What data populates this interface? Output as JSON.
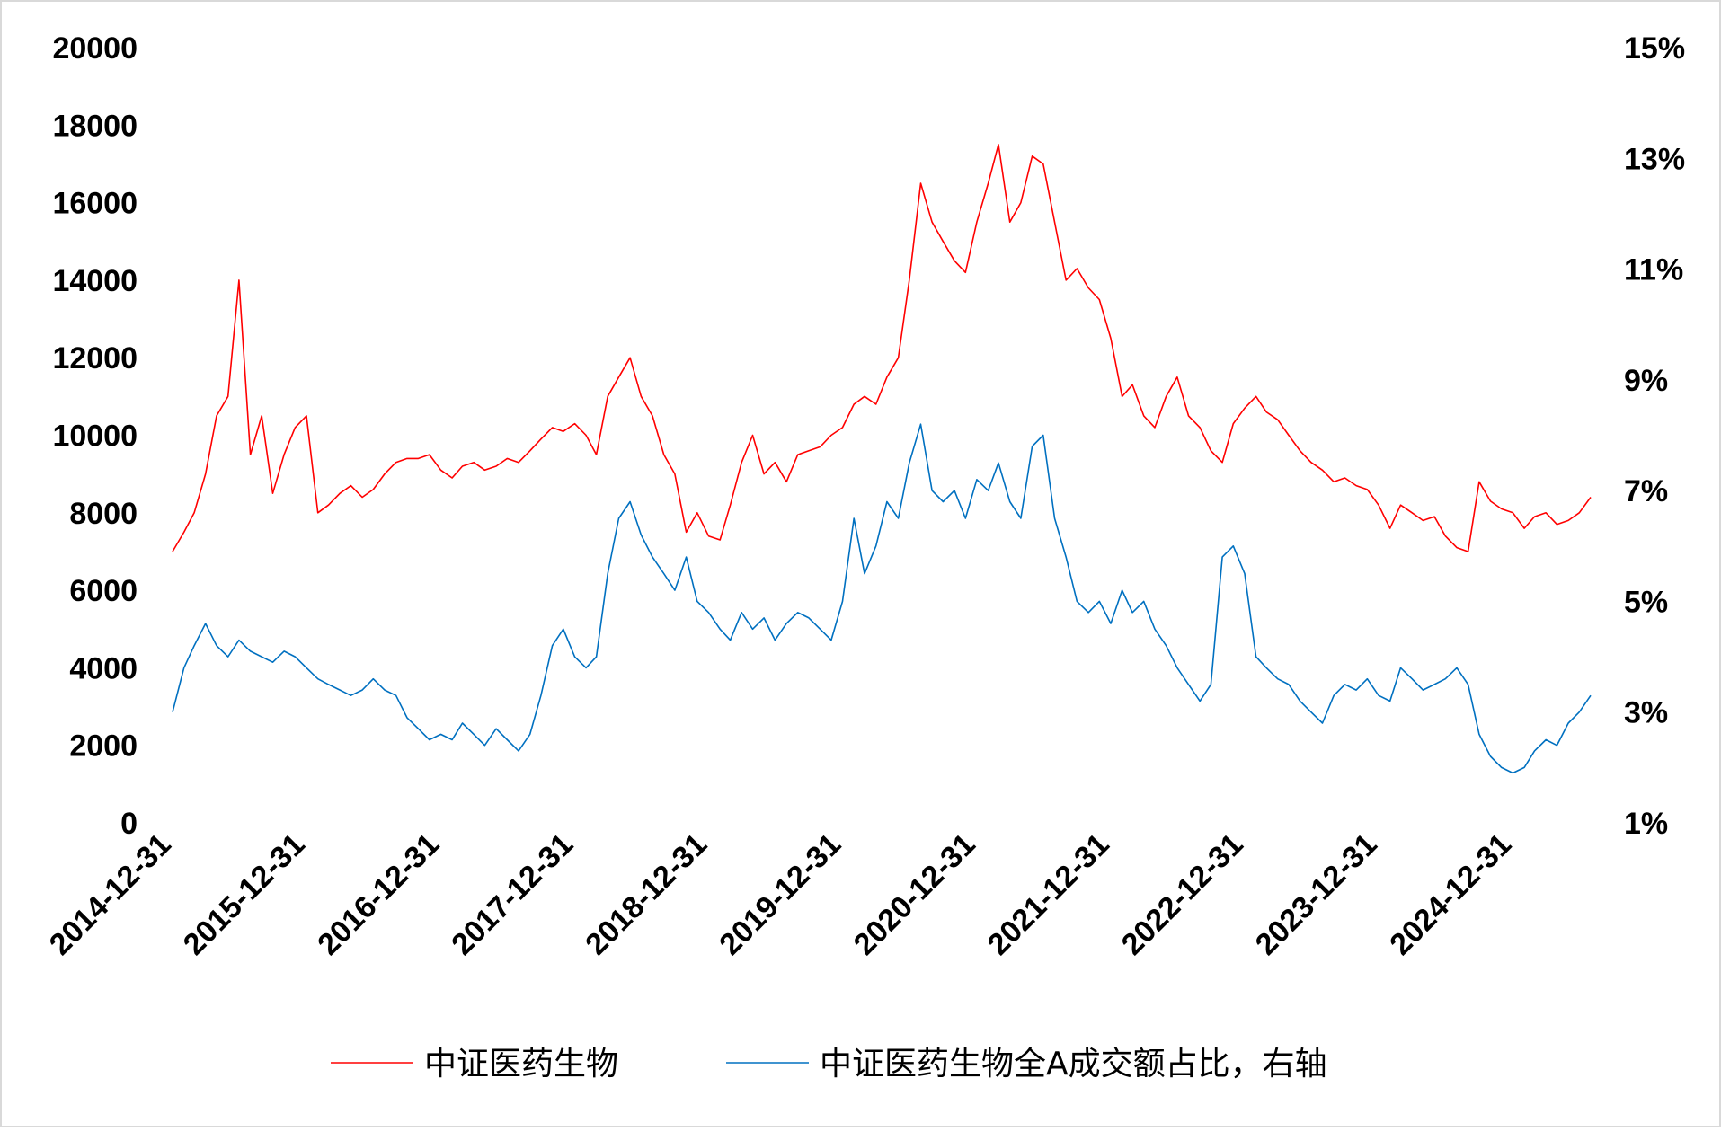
{
  "chart_data": {
    "type": "line",
    "x": [
      "2014-12-31",
      "2015-01-31",
      "2015-02-28",
      "2015-03-31",
      "2015-04-30",
      "2015-05-31",
      "2015-06-30",
      "2015-07-31",
      "2015-08-31",
      "2015-09-30",
      "2015-10-31",
      "2015-11-30",
      "2015-12-31",
      "2016-01-31",
      "2016-02-29",
      "2016-03-31",
      "2016-04-30",
      "2016-05-31",
      "2016-06-30",
      "2016-07-31",
      "2016-08-31",
      "2016-09-30",
      "2016-10-31",
      "2016-11-30",
      "2016-12-31",
      "2017-01-31",
      "2017-02-28",
      "2017-03-31",
      "2017-04-30",
      "2017-05-31",
      "2017-06-30",
      "2017-07-31",
      "2017-08-31",
      "2017-09-30",
      "2017-10-31",
      "2017-11-30",
      "2017-12-31",
      "2018-01-31",
      "2018-02-28",
      "2018-03-31",
      "2018-04-30",
      "2018-05-31",
      "2018-06-30",
      "2018-07-31",
      "2018-08-31",
      "2018-09-30",
      "2018-10-31",
      "2018-11-30",
      "2018-12-31",
      "2019-01-31",
      "2019-02-28",
      "2019-03-31",
      "2019-04-30",
      "2019-05-31",
      "2019-06-30",
      "2019-07-31",
      "2019-08-31",
      "2019-09-30",
      "2019-10-31",
      "2019-11-30",
      "2019-12-31",
      "2020-01-31",
      "2020-02-29",
      "2020-03-31",
      "2020-04-30",
      "2020-05-31",
      "2020-06-30",
      "2020-07-31",
      "2020-08-31",
      "2020-09-30",
      "2020-10-31",
      "2020-11-30",
      "2020-12-31",
      "2021-01-31",
      "2021-02-28",
      "2021-03-31",
      "2021-04-30",
      "2021-05-31",
      "2021-06-30",
      "2021-07-31",
      "2021-08-31",
      "2021-09-30",
      "2021-10-31",
      "2021-11-30",
      "2021-12-31",
      "2022-01-31",
      "2022-02-28",
      "2022-03-31",
      "2022-04-30",
      "2022-05-31",
      "2022-06-30",
      "2022-07-31",
      "2022-08-31",
      "2022-09-30",
      "2022-10-31",
      "2022-11-30",
      "2022-12-31",
      "2023-01-31",
      "2023-02-28",
      "2023-03-31",
      "2023-04-30",
      "2023-05-31",
      "2023-06-30",
      "2023-07-31",
      "2023-08-31",
      "2023-09-30",
      "2023-10-31",
      "2023-11-30",
      "2023-12-31",
      "2024-01-31",
      "2024-02-29",
      "2024-03-31",
      "2024-04-30",
      "2024-05-31",
      "2024-06-30",
      "2024-07-31",
      "2024-08-31",
      "2024-09-30",
      "2024-10-31",
      "2024-11-30",
      "2024-12-31",
      "2025-01-31",
      "2025-02-28",
      "2025-03-31",
      "2025-04-30",
      "2025-05-31",
      "2025-06-30",
      "2025-07-31"
    ],
    "series": [
      {
        "name": "中证医药生物",
        "color": "#ff0000",
        "axis": "y",
        "values": [
          7000,
          7500,
          8000,
          9000,
          10500,
          11000,
          14000,
          9500,
          10500,
          8500,
          9500,
          10200,
          10500,
          8000,
          8200,
          8500,
          8700,
          8400,
          8600,
          9000,
          9300,
          9400,
          9400,
          9500,
          9100,
          8900,
          9200,
          9300,
          9100,
          9200,
          9400,
          9300,
          9600,
          9900,
          10200,
          10100,
          10300,
          10000,
          9500,
          11000,
          11500,
          12000,
          11000,
          10500,
          9500,
          9000,
          7500,
          8000,
          7400,
          7300,
          8200,
          9300,
          10000,
          9000,
          9300,
          8800,
          9500,
          9600,
          9700,
          10000,
          10200,
          10800,
          11000,
          10800,
          11500,
          12000,
          14000,
          16500,
          15500,
          15000,
          14500,
          14200,
          15500,
          16500,
          17500,
          15500,
          16000,
          17200,
          17000,
          15500,
          14000,
          14300,
          13800,
          13500,
          12500,
          11000,
          11300,
          10500,
          10200,
          11000,
          11500,
          10500,
          10200,
          9600,
          9300,
          10300,
          10700,
          11000,
          10600,
          10400,
          10000,
          9600,
          9300,
          9100,
          8800,
          8900,
          8700,
          8600,
          8200,
          7600,
          8200,
          8000,
          7800,
          7900,
          7400,
          7100,
          7000,
          8800,
          8300,
          8100,
          8000,
          7600,
          7900,
          8000,
          7700,
          7800,
          8000,
          8400
        ]
      },
      {
        "name": "中证医药生物全A成交额占比，右轴",
        "color": "#0070c0",
        "axis": "y2",
        "values": [
          3.0,
          3.8,
          4.2,
          4.6,
          4.2,
          4.0,
          4.3,
          4.1,
          4.0,
          3.9,
          4.1,
          4.0,
          3.8,
          3.6,
          3.5,
          3.4,
          3.3,
          3.4,
          3.6,
          3.4,
          3.3,
          2.9,
          2.7,
          2.5,
          2.6,
          2.5,
          2.8,
          2.6,
          2.4,
          2.7,
          2.5,
          2.3,
          2.6,
          3.3,
          4.2,
          4.5,
          4.0,
          3.8,
          4.0,
          5.5,
          6.5,
          6.8,
          6.2,
          5.8,
          5.5,
          5.2,
          5.8,
          5.0,
          4.8,
          4.5,
          4.3,
          4.8,
          4.5,
          4.7,
          4.3,
          4.6,
          4.8,
          4.7,
          4.5,
          4.3,
          5.0,
          6.5,
          5.5,
          6.0,
          6.8,
          6.5,
          7.5,
          8.2,
          7.0,
          6.8,
          7.0,
          6.5,
          7.2,
          7.0,
          7.5,
          6.8,
          6.5,
          7.8,
          8.0,
          6.5,
          5.8,
          5.0,
          4.8,
          5.0,
          4.6,
          5.2,
          4.8,
          5.0,
          4.5,
          4.2,
          3.8,
          3.5,
          3.2,
          3.5,
          5.8,
          6.0,
          5.5,
          4.0,
          3.8,
          3.6,
          3.5,
          3.2,
          3.0,
          2.8,
          3.3,
          3.5,
          3.4,
          3.6,
          3.3,
          3.2,
          3.8,
          3.6,
          3.4,
          3.5,
          3.6,
          3.8,
          3.5,
          2.6,
          2.2,
          2.0,
          1.9,
          2.0,
          2.3,
          2.5,
          2.4,
          2.8,
          3.0,
          3.3
        ]
      }
    ],
    "xlim": [
      "2014-12-31",
      "2025-07-31"
    ],
    "xticks": [
      "2014-12-31",
      "2015-12-31",
      "2016-12-31",
      "2017-12-31",
      "2018-12-31",
      "2019-12-31",
      "2020-12-31",
      "2021-12-31",
      "2022-12-31",
      "2023-12-31",
      "2024-12-31"
    ],
    "ylim": [
      0,
      20000
    ],
    "yticks": [
      0,
      2000,
      4000,
      6000,
      8000,
      10000,
      12000,
      14000,
      16000,
      18000,
      20000
    ],
    "y2lim": [
      1,
      15
    ],
    "y2ticks": [
      {
        "value": 1,
        "label": "1%"
      },
      {
        "value": 3,
        "label": "3%"
      },
      {
        "value": 5,
        "label": "5%"
      },
      {
        "value": 7,
        "label": "7%"
      },
      {
        "value": 9,
        "label": "9%"
      },
      {
        "value": 11,
        "label": "11%"
      },
      {
        "value": 13,
        "label": "13%"
      },
      {
        "value": 15,
        "label": "15%"
      }
    ],
    "legend": "bottom"
  }
}
